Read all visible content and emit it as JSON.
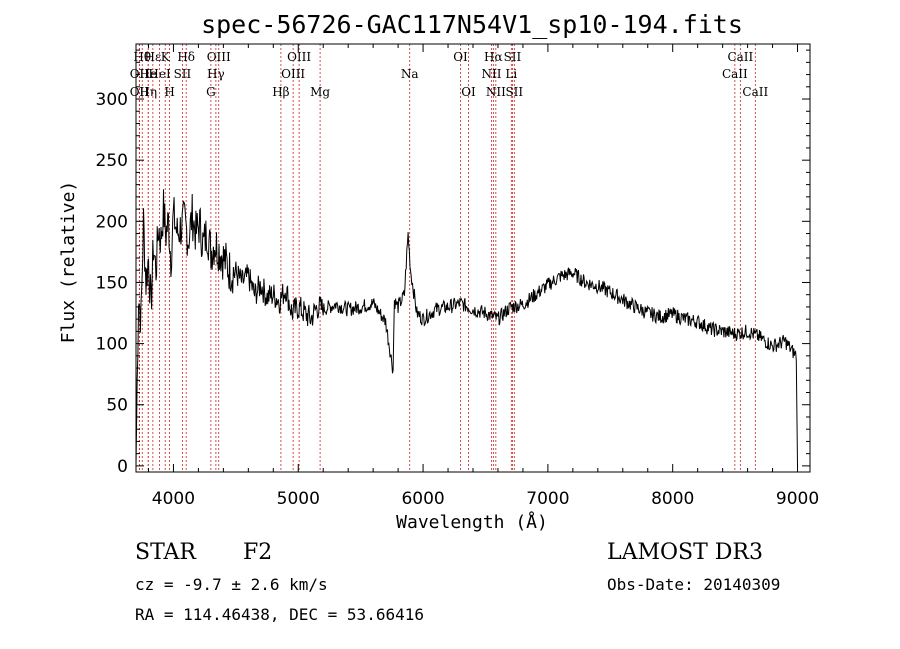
{
  "chart_data": {
    "type": "line",
    "title": "spec-56726-GAC117N54V1_sp10-194.fits",
    "xlabel": "Wavelength (Å)",
    "ylabel": "Flux (relative)",
    "xlim": [
      3700,
      9100
    ],
    "ylim": [
      -5,
      345
    ],
    "x_ticks": [
      4000,
      5000,
      6000,
      7000,
      8000,
      9000
    ],
    "y_ticks": [
      0,
      50,
      100,
      150,
      200,
      250,
      300
    ],
    "series": [
      {
        "name": "flux",
        "x": [
          3700,
          3720,
          3740,
          3760,
          3780,
          3800,
          3820,
          3840,
          3860,
          3880,
          3900,
          3920,
          3940,
          3960,
          3980,
          4000,
          4030,
          4060,
          4090,
          4120,
          4150,
          4180,
          4210,
          4240,
          4270,
          4300,
          4330,
          4360,
          4400,
          4450,
          4500,
          4550,
          4600,
          4650,
          4700,
          4750,
          4800,
          4850,
          4900,
          4950,
          5000,
          5050,
          5100,
          5150,
          5200,
          5300,
          5400,
          5500,
          5600,
          5700,
          5760,
          5770,
          5800,
          5850,
          5880,
          5900,
          5950,
          6000,
          6100,
          6200,
          6300,
          6400,
          6500,
          6600,
          6700,
          6800,
          6900,
          7000,
          7100,
          7200,
          7300,
          7400,
          7500,
          7600,
          7700,
          7800,
          7900,
          8000,
          8100,
          8200,
          8300,
          8400,
          8500,
          8600,
          8700,
          8800,
          8900,
          8950,
          8990,
          9000
        ],
        "y": [
          0,
          140,
          120,
          200,
          150,
          170,
          130,
          180,
          160,
          195,
          185,
          210,
          190,
          200,
          170,
          205,
          190,
          195,
          200,
          185,
          205,
          190,
          198,
          180,
          192,
          175,
          182,
          178,
          170,
          160,
          158,
          150,
          155,
          140,
          148,
          138,
          140,
          135,
          145,
          125,
          130,
          125,
          120,
          130,
          128,
          132,
          128,
          130,
          133,
          118,
          78,
          135,
          130,
          140,
          190,
          160,
          125,
          120,
          128,
          130,
          133,
          128,
          125,
          120,
          130,
          132,
          140,
          148,
          155,
          158,
          150,
          147,
          142,
          136,
          130,
          125,
          122,
          124,
          120,
          118,
          112,
          110,
          108,
          110,
          105,
          98,
          102,
          95,
          90,
          0
        ]
      }
    ],
    "lines": [
      {
        "wl": 3727,
        "label": "OII",
        "row": 1
      },
      {
        "wl": 3727,
        "label": "OII",
        "row": 2
      },
      {
        "wl": 3750,
        "label": "Hθ",
        "row": 0
      },
      {
        "wl": 3798,
        "label": "He",
        "row": 1
      },
      {
        "wl": 3798,
        "label": "Hη",
        "row": 2
      },
      {
        "wl": 3835,
        "label": "Hε",
        "row": 0
      },
      {
        "wl": 3889,
        "label": "HeI",
        "row": 1
      },
      {
        "wl": 3934,
        "label": "K",
        "row": 0
      },
      {
        "wl": 3969,
        "label": "H",
        "row": 2
      },
      {
        "wl": 4072,
        "label": "SII",
        "row": 1
      },
      {
        "wl": 4102,
        "label": "Hδ",
        "row": 0
      },
      {
        "wl": 4300,
        "label": "G",
        "row": 2
      },
      {
        "wl": 4340,
        "label": "Hγ",
        "row": 1
      },
      {
        "wl": 4363,
        "label": "OIII",
        "row": 0
      },
      {
        "wl": 4861,
        "label": "Hβ",
        "row": 2
      },
      {
        "wl": 4959,
        "label": "OIII",
        "row": 1
      },
      {
        "wl": 5007,
        "label": "OIII",
        "row": 0
      },
      {
        "wl": 5175,
        "label": "Mg",
        "row": 2
      },
      {
        "wl": 5893,
        "label": "Na",
        "row": 1
      },
      {
        "wl": 6300,
        "label": "OI",
        "row": 0
      },
      {
        "wl": 6364,
        "label": "OI",
        "row": 2
      },
      {
        "wl": 6548,
        "label": "NII",
        "row": 1
      },
      {
        "wl": 6563,
        "label": "Hα",
        "row": 0
      },
      {
        "wl": 6583,
        "label": "NII",
        "row": 2
      },
      {
        "wl": 6707,
        "label": "Li",
        "row": 1
      },
      {
        "wl": 6716,
        "label": "SII",
        "row": 0
      },
      {
        "wl": 6731,
        "label": "SII",
        "row": 2
      },
      {
        "wl": 8498,
        "label": "CaII",
        "row": 1
      },
      {
        "wl": 8542,
        "label": "CaII",
        "row": 0
      },
      {
        "wl": 8662,
        "label": "CaII",
        "row": 2
      }
    ]
  },
  "info": {
    "object_class": "STAR",
    "subclass": "F2",
    "survey": "LAMOST DR3",
    "cz": "cz = -9.7 ± 2.6 km/s",
    "obs_date": "Obs-Date: 20140309",
    "coords": "RA = 114.46438, DEC =  53.66416"
  },
  "colors": {
    "line_marker": "#cc2222",
    "spectrum": "#000000"
  }
}
